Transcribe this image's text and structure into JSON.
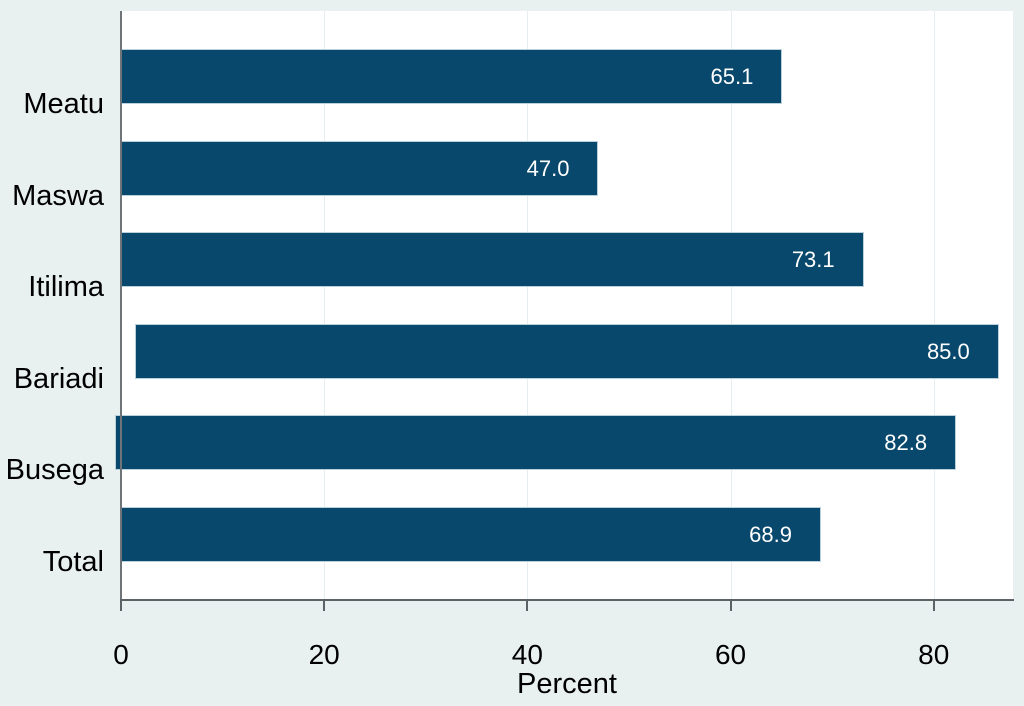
{
  "chart_data": {
    "type": "bar",
    "orientation": "horizontal",
    "title": "",
    "categories": [
      "Meatu",
      "Maswa",
      "Itilima",
      "Bariadi",
      "Busega",
      "Total"
    ],
    "values": [
      65.1,
      47.0,
      73.1,
      85.0,
      82.8,
      68.9
    ],
    "value_labels": [
      "65.1",
      "47.0",
      "73.1",
      "85.0",
      "82.8",
      "68.9"
    ],
    "bar_start_offsets": [
      0,
      0,
      0,
      1.4,
      -0.6,
      0
    ],
    "xlabel": "Percent",
    "x_ticks": [
      0,
      20,
      40,
      60,
      80
    ],
    "x_tick_labels": [
      "0",
      "20",
      "40",
      "60",
      "80"
    ],
    "xlim": [
      0,
      87.8
    ],
    "gridlines_x": [
      20,
      40,
      60,
      80
    ],
    "legend": "none",
    "colors": {
      "background": "#e8f1f0",
      "plot_background": "#ffffff",
      "bar_fill": "#09486d",
      "bar_border": "#bad1dc",
      "gridline": "#e6edf1",
      "axis_line": "#5c6265",
      "category_text": "#000000",
      "tick_text": "#000000",
      "value_text": "#ffffff"
    }
  }
}
